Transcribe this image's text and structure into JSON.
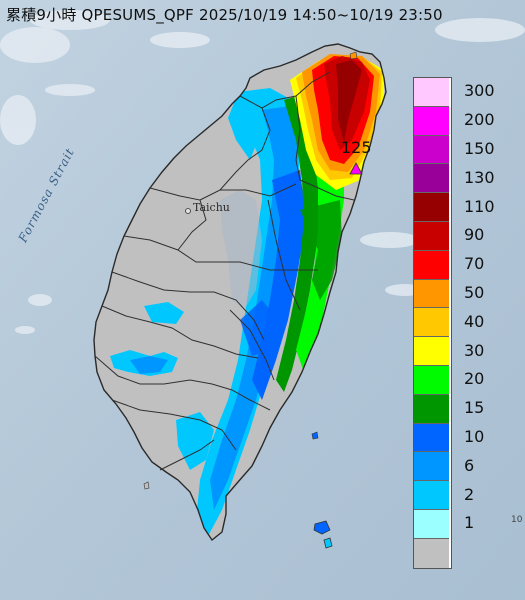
{
  "title": "累積9小時 QPESUMS_QPF 2025/10/19 14:50~10/19 23:50",
  "map": {
    "sea_label": "Formosa Strait",
    "city_label": "Taichu",
    "max_value_label": "125",
    "edge_label": "10"
  },
  "legend": {
    "items": [
      {
        "label": "300",
        "color": "#ffc8ff"
      },
      {
        "label": "200",
        "color": "#ff00ff"
      },
      {
        "label": "150",
        "color": "#cc00cc"
      },
      {
        "label": "130",
        "color": "#990099"
      },
      {
        "label": "110",
        "color": "#960000"
      },
      {
        "label": "90",
        "color": "#c80000"
      },
      {
        "label": "70",
        "color": "#ff0000"
      },
      {
        "label": "50",
        "color": "#ff9600"
      },
      {
        "label": "40",
        "color": "#ffc800"
      },
      {
        "label": "30",
        "color": "#ffff00"
      },
      {
        "label": "20",
        "color": "#00fa00"
      },
      {
        "label": "15",
        "color": "#009600"
      },
      {
        "label": "10",
        "color": "#0064ff"
      },
      {
        "label": "6",
        "color": "#0096ff"
      },
      {
        "label": "2",
        "color": "#00c8ff"
      },
      {
        "label": "1",
        "color": "#9bffff"
      },
      {
        "label": "",
        "color": "#c0c0c0"
      }
    ]
  },
  "colors": {
    "sea": "#b4c8d8",
    "land_dry": "#c0c0c0",
    "boundary": "#303030"
  }
}
